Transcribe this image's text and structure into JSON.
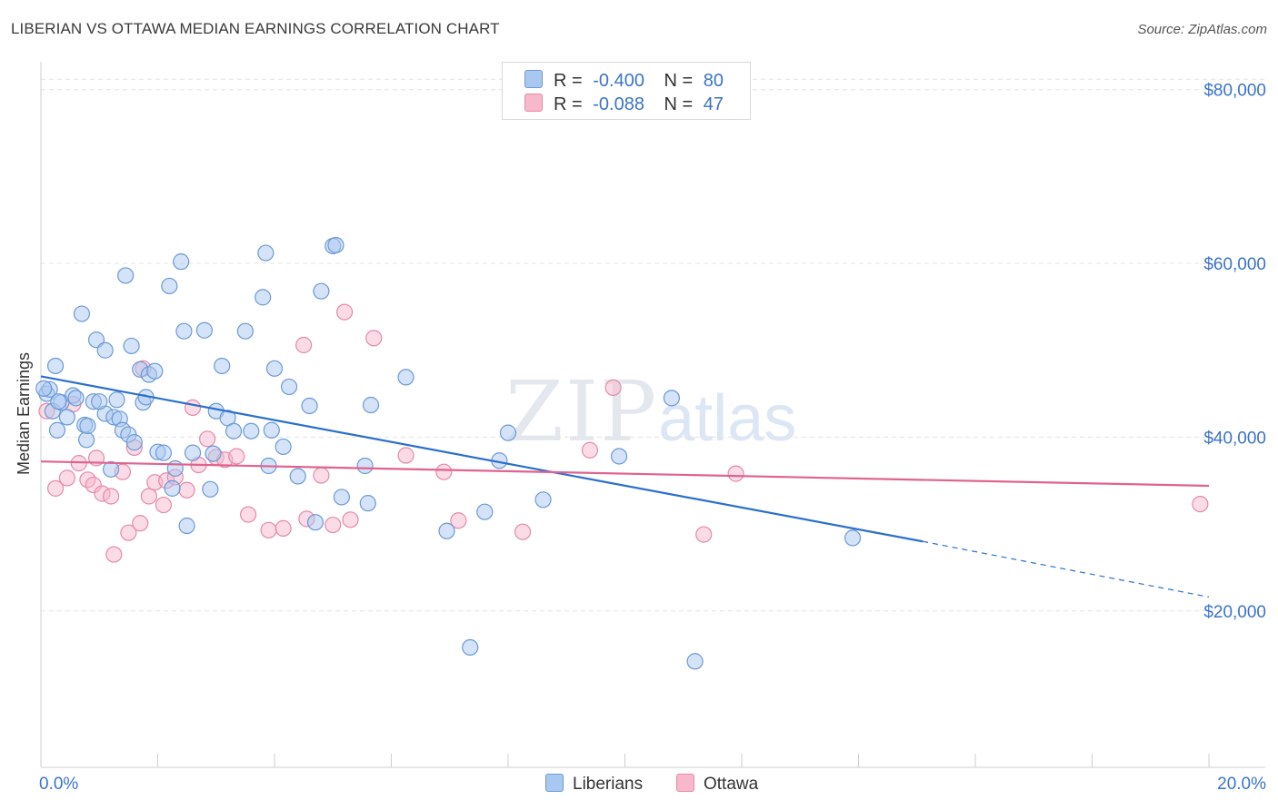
{
  "title": "LIBERIAN VS OTTAWA MEDIAN EARNINGS CORRELATION CHART",
  "source": "Source: ZipAtlas.com",
  "watermark": {
    "zip": "ZIP",
    "atlas": "atlas"
  },
  "legend": {
    "rows": [
      {
        "r_label": "R =",
        "r_value": "-0.400",
        "n_label": "N =",
        "n_value": "80",
        "color": "#a9c8f0",
        "border": "#6a9ad8"
      },
      {
        "r_label": "R =",
        "r_value": "-0.088",
        "n_label": "N =",
        "n_value": "47",
        "color": "#f8b8cc",
        "border": "#e58aa8"
      }
    ]
  },
  "bottom_legend": [
    {
      "label": "Liberians",
      "color": "#a9c8f0",
      "border": "#6a9ad8"
    },
    {
      "label": "Ottawa",
      "color": "#f8b8cc",
      "border": "#e58aa8"
    }
  ],
  "chart_data": {
    "type": "scatter",
    "title": "LIBERIAN VS OTTAWA MEDIAN EARNINGS CORRELATION CHART",
    "xlabel": "",
    "ylabel": "Median Earnings",
    "xlim": [
      0,
      20
    ],
    "ylim": [
      2000,
      83000
    ],
    "x_tick_labels": [
      "0.0%",
      "20.0%"
    ],
    "y_ticks": [
      20000,
      40000,
      60000,
      80000
    ],
    "y_tick_labels": [
      "$20,000",
      "$40,000",
      "$60,000",
      "$80,000"
    ],
    "grid": true,
    "series": [
      {
        "name": "Liberians",
        "color": "#6a9ad8",
        "fill": "#a9c8f0",
        "trend": {
          "x0": 0,
          "y0": 47000,
          "x1": 15.1,
          "y1": 28000,
          "dash_to_x": 20,
          "dash_to_y": 21600,
          "color": "#2b6fcc"
        },
        "points": [
          [
            0.1,
            45000
          ],
          [
            0.15,
            45500
          ],
          [
            0.2,
            43000
          ],
          [
            0.25,
            48200
          ],
          [
            0.28,
            40800
          ],
          [
            0.35,
            44000
          ],
          [
            0.45,
            42300
          ],
          [
            0.55,
            44800
          ],
          [
            0.6,
            44500
          ],
          [
            0.7,
            54200
          ],
          [
            0.75,
            41400
          ],
          [
            0.78,
            39700
          ],
          [
            0.8,
            41300
          ],
          [
            0.9,
            44100
          ],
          [
            0.95,
            51200
          ],
          [
            1.1,
            42700
          ],
          [
            1.1,
            50000
          ],
          [
            1.2,
            36300
          ],
          [
            1.25,
            42300
          ],
          [
            1.3,
            44300
          ],
          [
            1.35,
            42100
          ],
          [
            1.4,
            40800
          ],
          [
            1.45,
            58600
          ],
          [
            1.5,
            40300
          ],
          [
            1.55,
            50500
          ],
          [
            1.6,
            39400
          ],
          [
            1.7,
            47800
          ],
          [
            1.75,
            44000
          ],
          [
            1.8,
            44600
          ],
          [
            1.85,
            47200
          ],
          [
            1.95,
            47600
          ],
          [
            2.0,
            38300
          ],
          [
            2.1,
            38200
          ],
          [
            2.2,
            57400
          ],
          [
            2.25,
            34100
          ],
          [
            2.3,
            36400
          ],
          [
            2.4,
            60200
          ],
          [
            2.45,
            52200
          ],
          [
            2.5,
            29800
          ],
          [
            2.6,
            38200
          ],
          [
            2.8,
            52300
          ],
          [
            2.9,
            34000
          ],
          [
            2.95,
            38100
          ],
          [
            3.0,
            43000
          ],
          [
            3.1,
            48200
          ],
          [
            3.2,
            42200
          ],
          [
            3.3,
            40700
          ],
          [
            3.5,
            52200
          ],
          [
            3.6,
            40700
          ],
          [
            3.8,
            56100
          ],
          [
            3.85,
            61200
          ],
          [
            3.9,
            36700
          ],
          [
            3.95,
            40800
          ],
          [
            4.0,
            47900
          ],
          [
            4.15,
            38900
          ],
          [
            4.25,
            45800
          ],
          [
            4.4,
            35500
          ],
          [
            4.6,
            43600
          ],
          [
            4.7,
            30200
          ],
          [
            4.8,
            56800
          ],
          [
            5.0,
            62000
          ],
          [
            5.05,
            62100
          ],
          [
            5.15,
            33100
          ],
          [
            5.55,
            36700
          ],
          [
            5.6,
            32400
          ],
          [
            5.65,
            43700
          ],
          [
            6.25,
            46900
          ],
          [
            6.95,
            29200
          ],
          [
            7.35,
            15800
          ],
          [
            7.6,
            31400
          ],
          [
            7.85,
            37300
          ],
          [
            8.0,
            40500
          ],
          [
            8.6,
            32800
          ],
          [
            9.9,
            37800
          ],
          [
            10.8,
            44500
          ],
          [
            11.2,
            14200
          ],
          [
            13.9,
            28400
          ],
          [
            0.05,
            45600
          ],
          [
            0.3,
            44100
          ],
          [
            1.0,
            44100
          ]
        ]
      },
      {
        "name": "Ottawa",
        "color": "#e58aa8",
        "fill": "#f8b8cc",
        "trend": {
          "x0": 0,
          "y0": 37200,
          "x1": 20,
          "y1": 34400,
          "color": "#e0628f"
        },
        "points": [
          [
            0.1,
            43000
          ],
          [
            0.25,
            34100
          ],
          [
            0.45,
            35300
          ],
          [
            0.55,
            43800
          ],
          [
            0.65,
            37000
          ],
          [
            0.8,
            35100
          ],
          [
            0.9,
            34500
          ],
          [
            0.95,
            37600
          ],
          [
            1.05,
            33500
          ],
          [
            1.2,
            33200
          ],
          [
            1.25,
            26500
          ],
          [
            1.4,
            36000
          ],
          [
            1.5,
            29000
          ],
          [
            1.6,
            38800
          ],
          [
            1.7,
            30100
          ],
          [
            1.75,
            47900
          ],
          [
            1.85,
            33200
          ],
          [
            1.95,
            34800
          ],
          [
            2.1,
            32200
          ],
          [
            2.15,
            35000
          ],
          [
            2.3,
            35400
          ],
          [
            2.5,
            33900
          ],
          [
            2.6,
            43400
          ],
          [
            2.7,
            36800
          ],
          [
            2.85,
            39800
          ],
          [
            3.0,
            37700
          ],
          [
            3.15,
            37400
          ],
          [
            3.35,
            37800
          ],
          [
            3.55,
            31100
          ],
          [
            3.9,
            29300
          ],
          [
            4.15,
            29500
          ],
          [
            4.5,
            50600
          ],
          [
            4.55,
            30600
          ],
          [
            4.8,
            35600
          ],
          [
            5.0,
            29900
          ],
          [
            5.2,
            54400
          ],
          [
            5.3,
            30500
          ],
          [
            5.7,
            51400
          ],
          [
            6.25,
            37900
          ],
          [
            6.9,
            36000
          ],
          [
            7.15,
            30400
          ],
          [
            8.25,
            29100
          ],
          [
            9.4,
            38500
          ],
          [
            9.8,
            45700
          ],
          [
            11.35,
            28800
          ],
          [
            11.9,
            35800
          ],
          [
            19.85,
            32300
          ]
        ]
      }
    ]
  }
}
